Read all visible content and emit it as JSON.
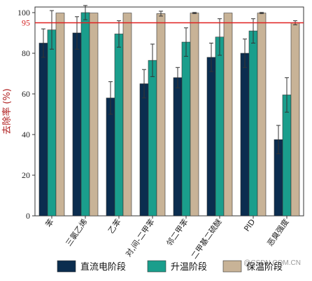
{
  "chart_data": {
    "type": "bar",
    "ylabel": "去除率 (%)",
    "ylim": [
      0,
      100
    ],
    "yticks": [
      0,
      20,
      40,
      60,
      80,
      100
    ],
    "categories": [
      "苯",
      "三氯乙烯",
      "乙苯",
      "对,间-二甲苯",
      "邻二甲苯",
      "二甲基二硫醚",
      "PID",
      "恶臭强度"
    ],
    "series": [
      {
        "name": "直流电阶段",
        "color": "#0b2d4f",
        "values": [
          85,
          90,
          58,
          65,
          68,
          78,
          80,
          37.5
        ],
        "errors": [
          7,
          8,
          8,
          7,
          5,
          7,
          7,
          7
        ]
      },
      {
        "name": "升温阶段",
        "color": "#1a9e8c",
        "values": [
          91.5,
          100,
          89.5,
          76.5,
          85.5,
          88,
          91,
          59.5
        ],
        "errors": [
          9.5,
          3.5,
          6.5,
          8,
          7,
          9,
          6,
          8.5
        ]
      },
      {
        "name": "保温阶段",
        "color": "#c8b397",
        "values": [
          99.8,
          99.8,
          99.8,
          99.5,
          99.8,
          99.8,
          99.8,
          95
        ],
        "errors": [
          0,
          0,
          0,
          1.2,
          0.3,
          0,
          0.3,
          1
        ]
      }
    ],
    "reference_line": {
      "value": 95,
      "label": "95",
      "color": "#e02020"
    },
    "legend_position": "bottom"
  },
  "watermark": "@CSDN.COM.CN"
}
